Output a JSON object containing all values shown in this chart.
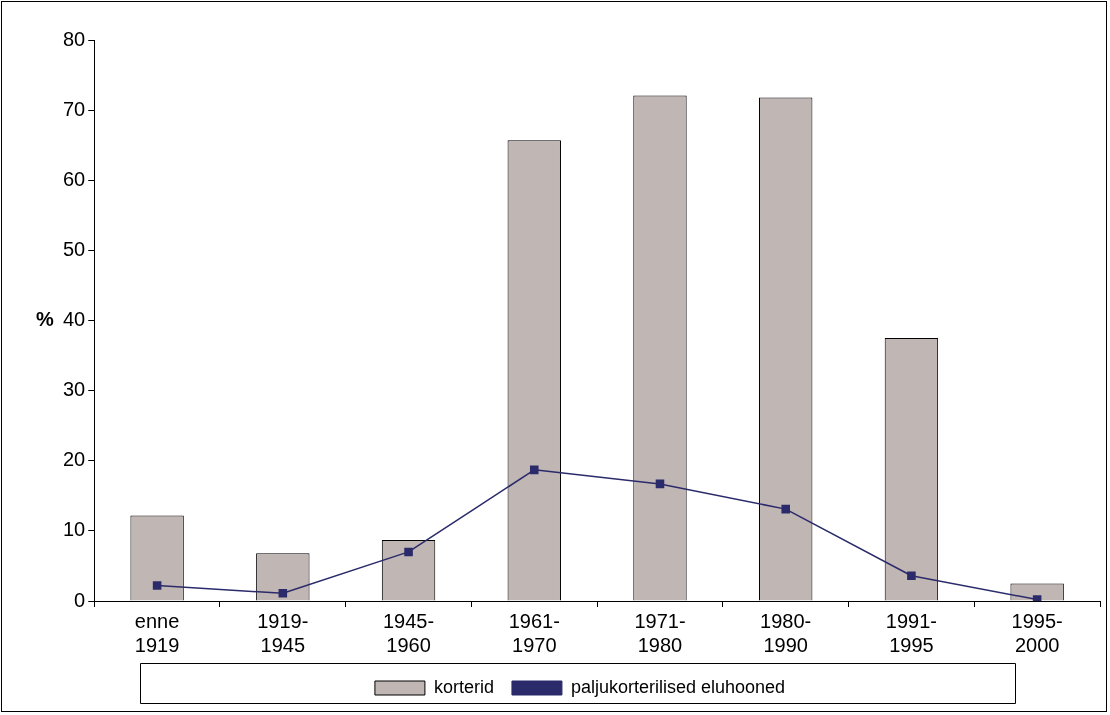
{
  "chart_data": {
    "type": "bar",
    "ylabel": "%",
    "categories": [
      "enne 1919",
      "1919-1945",
      "1945-1960",
      "1961-1970",
      "1971-1980",
      "1980-1990",
      "1991-1995",
      "1995-2000"
    ],
    "series": [
      {
        "name": "korterid",
        "color": "#c0b6b4",
        "values": [
          12.2,
          6.8,
          8.7,
          65.7,
          72.1,
          71.8,
          37.5,
          2.5
        ]
      },
      {
        "name": "paljukorterilised eluhooned",
        "type": "line",
        "color": "#2b2b6b",
        "values": [
          2.2,
          1.1,
          7.0,
          18.7,
          16.7,
          13.1,
          3.6,
          0.2
        ]
      }
    ],
    "ylim": [
      0,
      80
    ],
    "yticks": [
      0,
      10,
      20,
      30,
      40,
      50,
      60,
      70,
      80
    ],
    "grid": false,
    "legend": "bottom",
    "marker": "square",
    "line_style": "solid"
  }
}
